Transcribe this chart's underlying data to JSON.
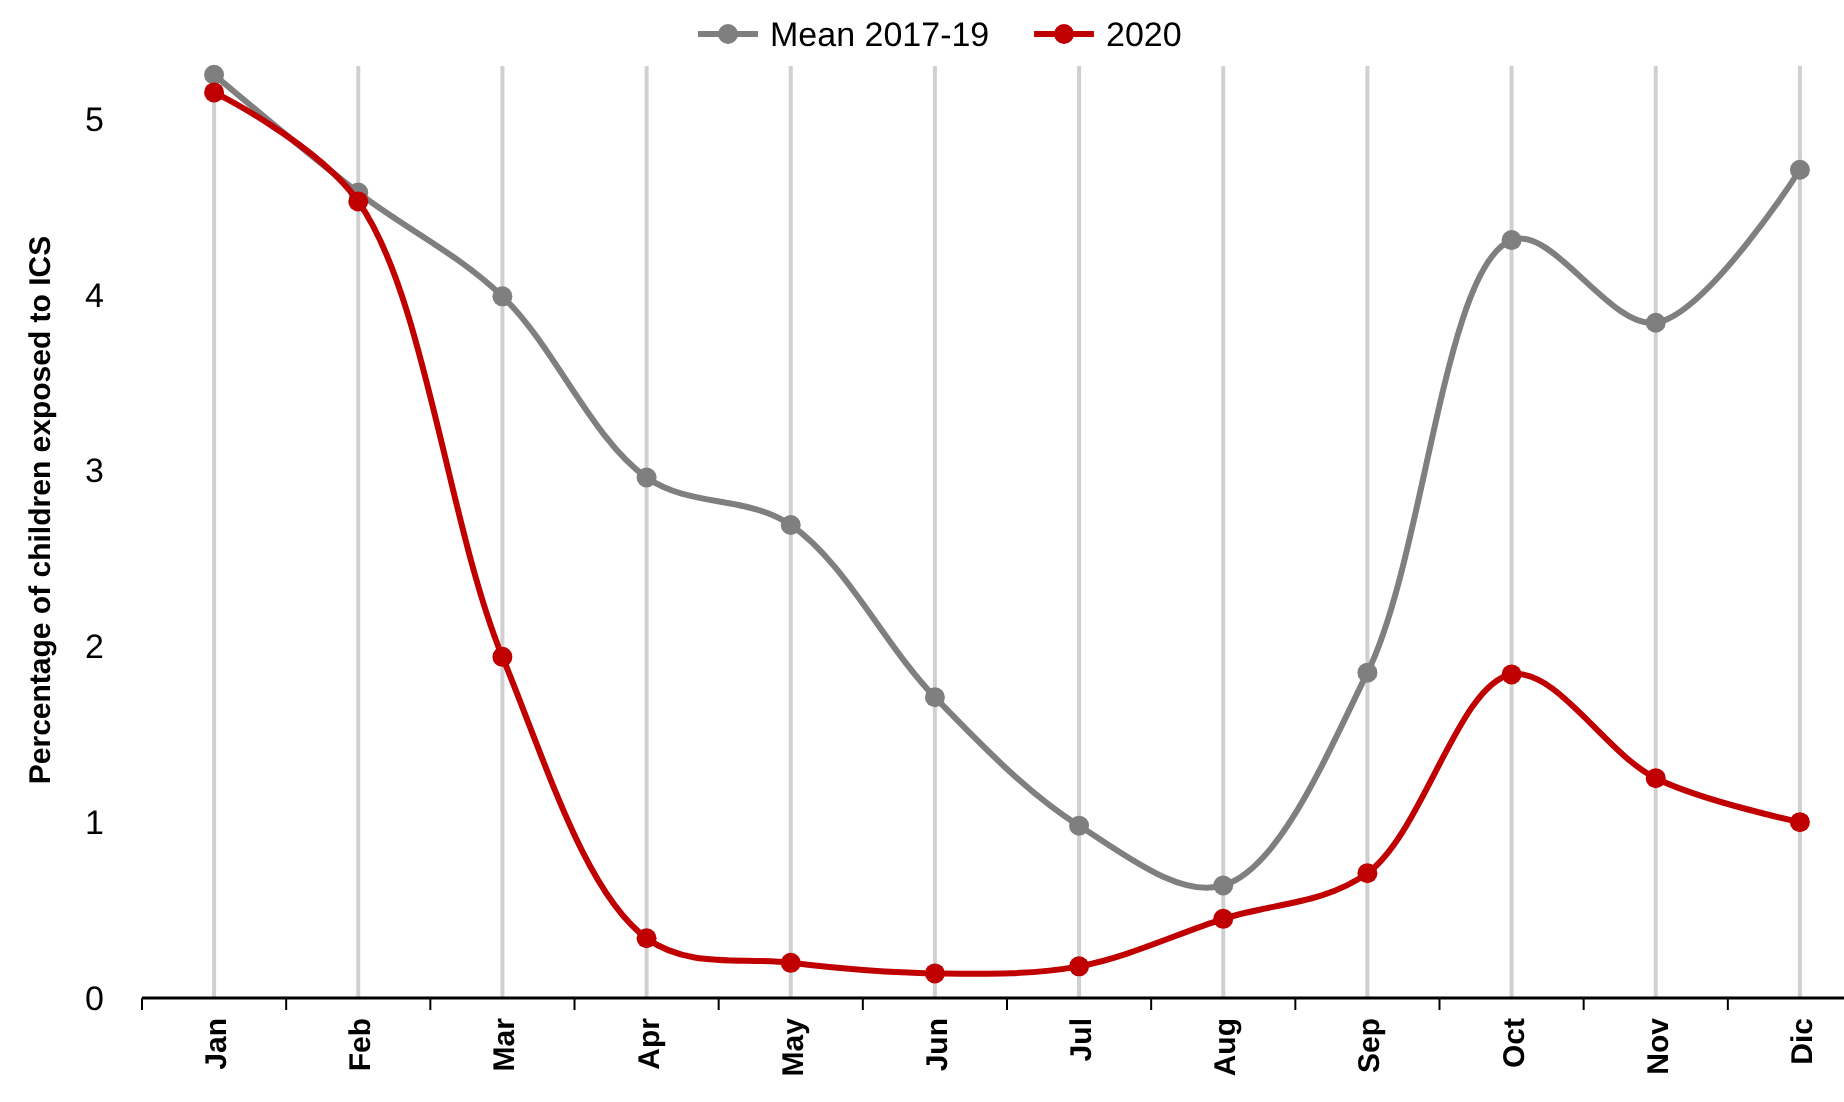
{
  "chart_data": {
    "type": "line",
    "ylabel": "Percentage  of children exposed to ICS",
    "categories": [
      "Jan",
      "Feb",
      "Mar",
      "Apr",
      "May",
      "Jun",
      "Jul",
      "Aug",
      "Sep",
      "Oct",
      "Nov",
      "Dic"
    ],
    "series": [
      {
        "name": "Mean 2017-19",
        "color": "#7f7f7f",
        "values": [
          5.25,
          4.58,
          3.99,
          2.96,
          2.69,
          1.71,
          0.98,
          0.64,
          1.85,
          4.31,
          3.84,
          4.71
        ]
      },
      {
        "name": "2020",
        "color": "#c00000",
        "values": [
          5.15,
          4.53,
          1.94,
          0.34,
          0.2,
          0.14,
          0.18,
          0.45,
          0.71,
          1.84,
          1.25,
          1.0
        ]
      }
    ],
    "ylim": [
      0,
      5.3
    ],
    "yticks": [
      0,
      1,
      2,
      3,
      4,
      5
    ],
    "grid": "x",
    "legend": "top",
    "marker": "circle",
    "line_style": "solid"
  }
}
